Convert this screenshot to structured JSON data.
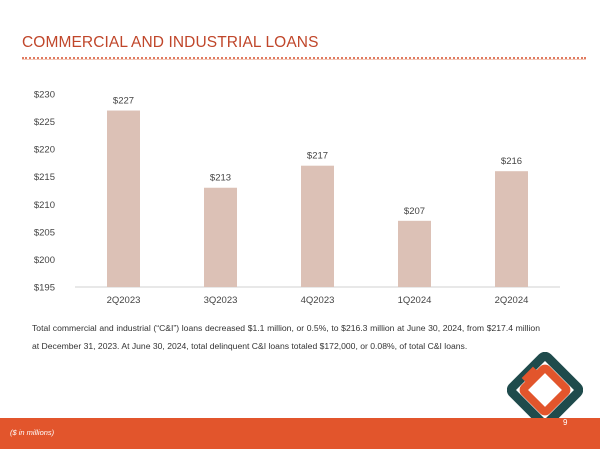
{
  "page": {
    "title": "COMMERCIAL AND INDUSTRIAL LOANS",
    "description": "Total commercial and industrial (“C&I”) loans decreased $1.1 million, or 0.5%, to $216.3 million at June 30, 2024, from $217.4 million at December 31, 2023. At June 30, 2024, total delinquent C&I loans totaled $172,000, or 0.08%, of total C&I loans.",
    "footnote": "($ in millions)",
    "page_number": "9"
  },
  "colors": {
    "bar": "#dcc1b6",
    "accent": "#e2552c",
    "logo_dark": "#1f4b4c",
    "logo_orange": "#e2552c"
  },
  "chart_data": {
    "type": "bar",
    "categories": [
      "2Q2023",
      "3Q2023",
      "4Q2023",
      "1Q2024",
      "2Q2024"
    ],
    "values": [
      227,
      213,
      217,
      207,
      216
    ],
    "data_labels": [
      "$227",
      "$213",
      "$217",
      "$207",
      "$216"
    ],
    "ylim": [
      195,
      230
    ],
    "yticks": [
      195,
      200,
      205,
      210,
      215,
      220,
      225,
      230
    ],
    "ytick_labels": [
      "$195",
      "$200",
      "$205",
      "$210",
      "$215",
      "$220",
      "$225",
      "$230"
    ],
    "grid": false,
    "legend": "none"
  }
}
